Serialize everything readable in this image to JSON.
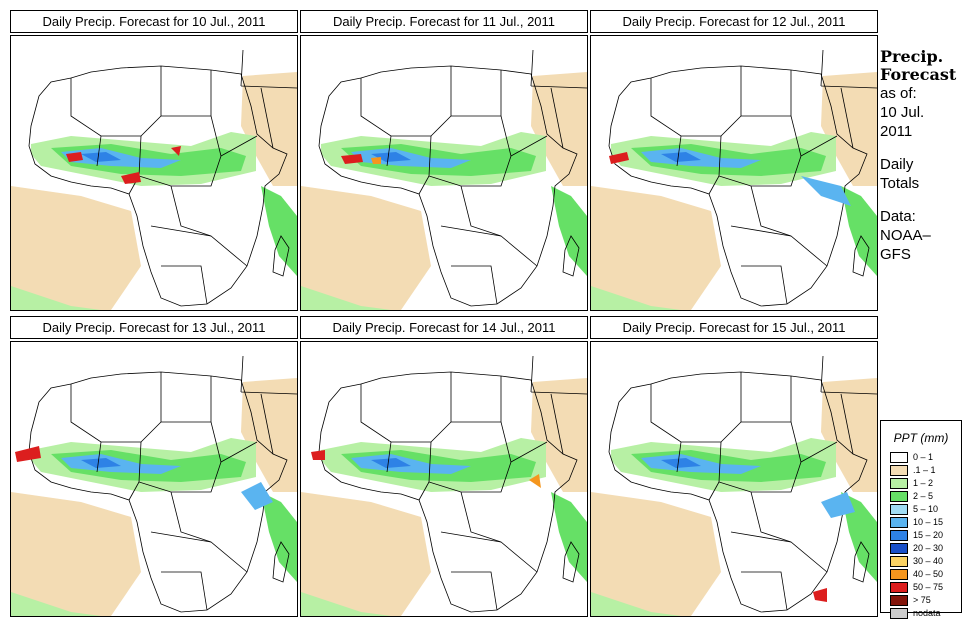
{
  "panels": [
    {
      "title": "Daily Precip. Forecast for  10 Jul., 2011"
    },
    {
      "title": "Daily Precip. Forecast for  11 Jul., 2011"
    },
    {
      "title": "Daily Precip. Forecast for  12 Jul., 2011"
    },
    {
      "title": "Daily Precip. Forecast for  13 Jul., 2011"
    },
    {
      "title": "Daily Precip. Forecast for  14 Jul., 2011"
    },
    {
      "title": "Daily Precip. Forecast for  15 Jul., 2011"
    }
  ],
  "sidebar": {
    "heading_line1": "Precip.",
    "heading_line2": "Forecast",
    "asof_label": "as of:",
    "date_line1": "10 Jul.",
    "date_line2": "2011",
    "daily_line1": "Daily",
    "daily_line2": "Totals",
    "data_line1": "Data:",
    "data_line2": "NOAA–",
    "data_line3": "GFS"
  },
  "legend": {
    "title": "PPT (mm)",
    "items": [
      {
        "label": "0 – 1",
        "color": "#ffffff"
      },
      {
        "label": ".1 – 1",
        "color": "#f3dcb4"
      },
      {
        "label": "1 – 2",
        "color": "#b7f0a4"
      },
      {
        "label": "2 – 5",
        "color": "#66e066"
      },
      {
        "label": "5 – 10",
        "color": "#a0dcf4"
      },
      {
        "label": "10 – 15",
        "color": "#5ab4f0"
      },
      {
        "label": "15 – 20",
        "color": "#2e82e6"
      },
      {
        "label": "20 – 30",
        "color": "#1a50c8"
      },
      {
        "label": "30 – 40",
        "color": "#fad264"
      },
      {
        "label": "40 – 50",
        "color": "#f5961e"
      },
      {
        "label": "50 – 75",
        "color": "#dc1e1e"
      },
      {
        "label": "> 75",
        "color": "#82140a"
      },
      {
        "label": "nodata",
        "color": "#cccccc"
      }
    ]
  }
}
